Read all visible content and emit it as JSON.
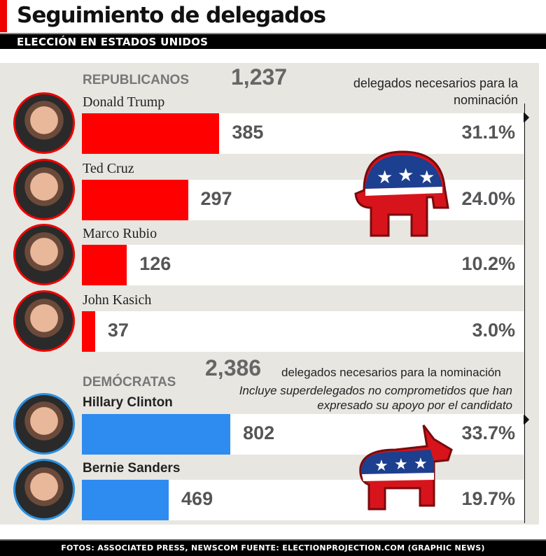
{
  "header": {
    "title": "Seguimiento de delegados",
    "subtitle": "ELECCIÓN EN ESTADOS UNIDOS"
  },
  "colors": {
    "republican": "#ff0000",
    "democrat": "#2e8cf0",
    "accent": "#e00000"
  },
  "chart_data": {
    "type": "bar",
    "groups": [
      {
        "label": "REPUBLICANOS",
        "needed": "1,237",
        "needed_value": 1237,
        "needed_label": "delegados necesarios para la nominación",
        "candidates": [
          {
            "name": "Donald Trump",
            "value": 385,
            "pct": "31.1%"
          },
          {
            "name": "Ted Cruz",
            "value": 297,
            "pct": "24.0%"
          },
          {
            "name": "Marco Rubio",
            "value": 126,
            "pct": "10.2%"
          },
          {
            "name": "John Kasich",
            "value": 37,
            "pct": "3.0%"
          }
        ]
      },
      {
        "label": "DEMÓCRATAS",
        "needed": "2,386",
        "needed_value": 2386,
        "needed_label": "delegados necesarios para la nominación",
        "note": "Incluye superdelegados no comprometidos que han expresado su apoyo por el candidato",
        "candidates": [
          {
            "name": "Hillary Clinton",
            "value": 802,
            "pct": "33.7%"
          },
          {
            "name": "Bernie Sanders",
            "value": 469,
            "pct": "19.7%"
          }
        ]
      }
    ]
  },
  "icons": {
    "rep": "republican-elephant-icon",
    "dem": "democrat-donkey-icon"
  },
  "footer": "FOTOS: ASSOCIATED PRESS, NEWSCOM   FUENTE: ELECTIONPROJECTION.COM (GRAPHIC NEWS)"
}
